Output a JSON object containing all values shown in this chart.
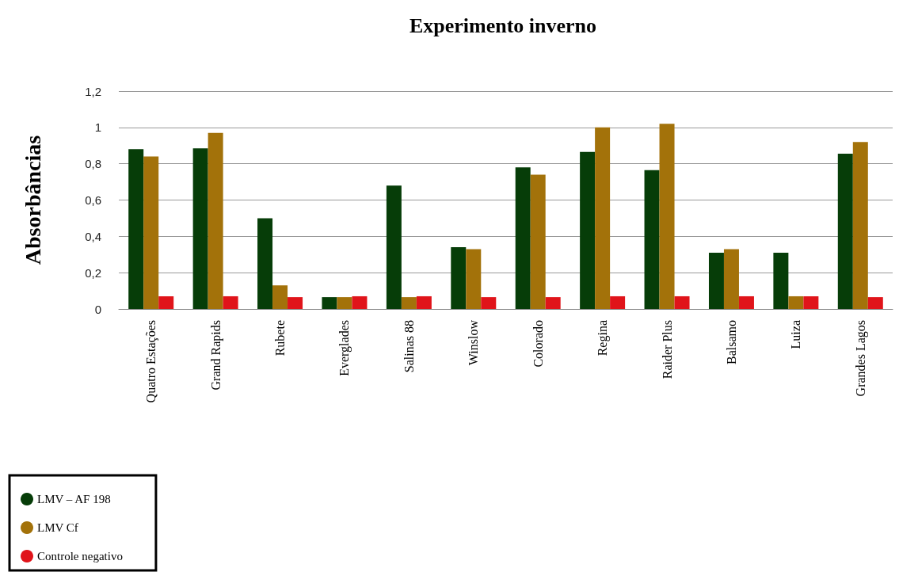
{
  "chart_data": {
    "type": "bar",
    "title": "Experimento inverno",
    "ylabel": "Absorbâncias",
    "categories": [
      "Quatro Estações",
      "Grand Rapids",
      "Rubete",
      "Everglades",
      "Salinas 88",
      "Winslow",
      "Colorado",
      "Regina",
      "Raider Plus",
      "Balsamo",
      "Luiza",
      "Grandes Lagos"
    ],
    "series": [
      {
        "name": "LMV – AF 198",
        "color": "#063d08",
        "values": [
          0.88,
          0.885,
          0.5,
          0.065,
          0.68,
          0.34,
          0.78,
          0.865,
          0.765,
          0.31,
          0.31,
          0.855
        ]
      },
      {
        "name": "LMV Cf",
        "color": "#a3720a",
        "values": [
          0.84,
          0.97,
          0.13,
          0.065,
          0.065,
          0.33,
          0.74,
          1.0,
          1.02,
          0.33,
          0.07,
          0.92
        ]
      },
      {
        "name": "Controle negativo",
        "color": "#e0141a",
        "values": [
          0.07,
          0.07,
          0.065,
          0.07,
          0.07,
          0.065,
          0.065,
          0.07,
          0.07,
          0.07,
          0.07,
          0.065
        ]
      }
    ],
    "ylim": [
      0,
      1.2
    ],
    "yticks": [
      0,
      {
        "value": 0.2,
        "label": "0,2"
      },
      {
        "value": 0.4,
        "label": "0,4"
      },
      {
        "value": 0.6,
        "label": "0,6"
      },
      {
        "value": 0.8,
        "label": "0,8"
      },
      1,
      {
        "value": 1.2,
        "label": "1,2"
      }
    ],
    "grid": "y",
    "legend": "bottom left"
  }
}
